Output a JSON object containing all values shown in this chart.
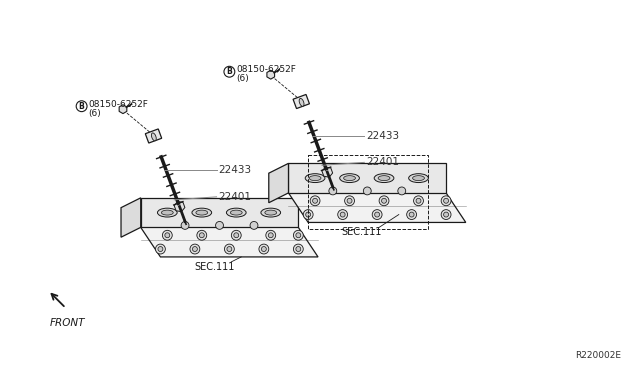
{
  "bg_color": "#ffffff",
  "line_color": "#1a1a1a",
  "label_color": "#333333",
  "gray_line": "#888888",
  "parts": {
    "bolt": "08150-6252F",
    "bolt_qty": "(6)",
    "coil": "22433",
    "plug": "22401",
    "sec": "SEC.111",
    "ref": "R220002E",
    "front": "FRONT"
  },
  "figsize": [
    6.4,
    3.72
  ],
  "dpi": 100
}
